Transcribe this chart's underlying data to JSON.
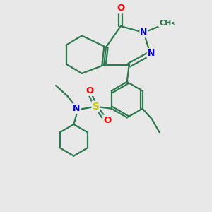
{
  "bg_color": "#e8e8e8",
  "bond_color": "#2d7a4f",
  "bond_width": 1.6,
  "atom_colors": {
    "O": "#ff0000",
    "N": "#0000cc",
    "S": "#cccc00",
    "C": "#2d7a4f"
  },
  "font_size": 8.5
}
